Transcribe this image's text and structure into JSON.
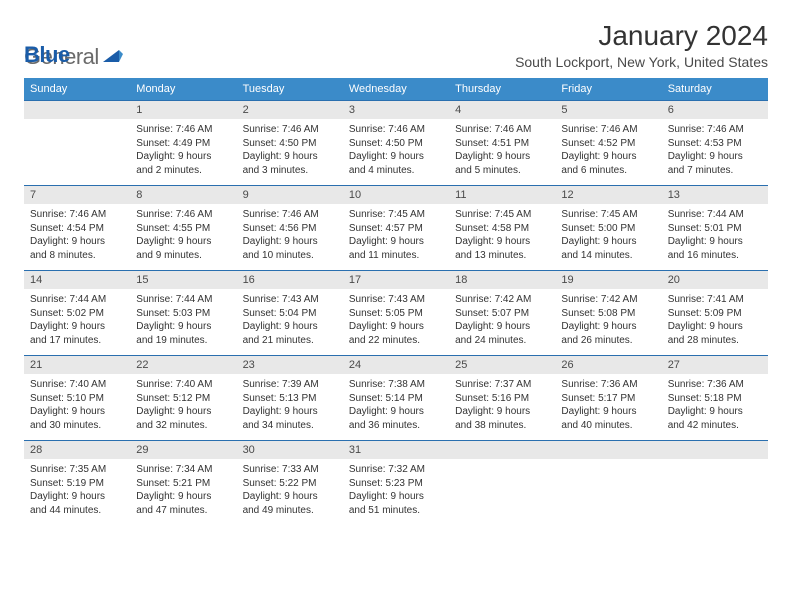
{
  "logo": {
    "gray": "General",
    "blue": "Blue"
  },
  "month_title": "January 2024",
  "location": "South Lockport, New York, United States",
  "colors": {
    "header_bg": "#3b8bc9",
    "header_text": "#ffffff",
    "daynum_bg": "#e8e8e8",
    "row_border": "#2a6faf",
    "logo_gray": "#6a6a6a",
    "logo_blue": "#1a5ca8"
  },
  "day_headers": [
    "Sunday",
    "Monday",
    "Tuesday",
    "Wednesday",
    "Thursday",
    "Friday",
    "Saturday"
  ],
  "weeks": [
    [
      null,
      {
        "n": "1",
        "sr": "7:46 AM",
        "ss": "4:49 PM",
        "dl": "9 hours and 2 minutes."
      },
      {
        "n": "2",
        "sr": "7:46 AM",
        "ss": "4:50 PM",
        "dl": "9 hours and 3 minutes."
      },
      {
        "n": "3",
        "sr": "7:46 AM",
        "ss": "4:50 PM",
        "dl": "9 hours and 4 minutes."
      },
      {
        "n": "4",
        "sr": "7:46 AM",
        "ss": "4:51 PM",
        "dl": "9 hours and 5 minutes."
      },
      {
        "n": "5",
        "sr": "7:46 AM",
        "ss": "4:52 PM",
        "dl": "9 hours and 6 minutes."
      },
      {
        "n": "6",
        "sr": "7:46 AM",
        "ss": "4:53 PM",
        "dl": "9 hours and 7 minutes."
      }
    ],
    [
      {
        "n": "7",
        "sr": "7:46 AM",
        "ss": "4:54 PM",
        "dl": "9 hours and 8 minutes."
      },
      {
        "n": "8",
        "sr": "7:46 AM",
        "ss": "4:55 PM",
        "dl": "9 hours and 9 minutes."
      },
      {
        "n": "9",
        "sr": "7:46 AM",
        "ss": "4:56 PM",
        "dl": "9 hours and 10 minutes."
      },
      {
        "n": "10",
        "sr": "7:45 AM",
        "ss": "4:57 PM",
        "dl": "9 hours and 11 minutes."
      },
      {
        "n": "11",
        "sr": "7:45 AM",
        "ss": "4:58 PM",
        "dl": "9 hours and 13 minutes."
      },
      {
        "n": "12",
        "sr": "7:45 AM",
        "ss": "5:00 PM",
        "dl": "9 hours and 14 minutes."
      },
      {
        "n": "13",
        "sr": "7:44 AM",
        "ss": "5:01 PM",
        "dl": "9 hours and 16 minutes."
      }
    ],
    [
      {
        "n": "14",
        "sr": "7:44 AM",
        "ss": "5:02 PM",
        "dl": "9 hours and 17 minutes."
      },
      {
        "n": "15",
        "sr": "7:44 AM",
        "ss": "5:03 PM",
        "dl": "9 hours and 19 minutes."
      },
      {
        "n": "16",
        "sr": "7:43 AM",
        "ss": "5:04 PM",
        "dl": "9 hours and 21 minutes."
      },
      {
        "n": "17",
        "sr": "7:43 AM",
        "ss": "5:05 PM",
        "dl": "9 hours and 22 minutes."
      },
      {
        "n": "18",
        "sr": "7:42 AM",
        "ss": "5:07 PM",
        "dl": "9 hours and 24 minutes."
      },
      {
        "n": "19",
        "sr": "7:42 AM",
        "ss": "5:08 PM",
        "dl": "9 hours and 26 minutes."
      },
      {
        "n": "20",
        "sr": "7:41 AM",
        "ss": "5:09 PM",
        "dl": "9 hours and 28 minutes."
      }
    ],
    [
      {
        "n": "21",
        "sr": "7:40 AM",
        "ss": "5:10 PM",
        "dl": "9 hours and 30 minutes."
      },
      {
        "n": "22",
        "sr": "7:40 AM",
        "ss": "5:12 PM",
        "dl": "9 hours and 32 minutes."
      },
      {
        "n": "23",
        "sr": "7:39 AM",
        "ss": "5:13 PM",
        "dl": "9 hours and 34 minutes."
      },
      {
        "n": "24",
        "sr": "7:38 AM",
        "ss": "5:14 PM",
        "dl": "9 hours and 36 minutes."
      },
      {
        "n": "25",
        "sr": "7:37 AM",
        "ss": "5:16 PM",
        "dl": "9 hours and 38 minutes."
      },
      {
        "n": "26",
        "sr": "7:36 AM",
        "ss": "5:17 PM",
        "dl": "9 hours and 40 minutes."
      },
      {
        "n": "27",
        "sr": "7:36 AM",
        "ss": "5:18 PM",
        "dl": "9 hours and 42 minutes."
      }
    ],
    [
      {
        "n": "28",
        "sr": "7:35 AM",
        "ss": "5:19 PM",
        "dl": "9 hours and 44 minutes."
      },
      {
        "n": "29",
        "sr": "7:34 AM",
        "ss": "5:21 PM",
        "dl": "9 hours and 47 minutes."
      },
      {
        "n": "30",
        "sr": "7:33 AM",
        "ss": "5:22 PM",
        "dl": "9 hours and 49 minutes."
      },
      {
        "n": "31",
        "sr": "7:32 AM",
        "ss": "5:23 PM",
        "dl": "9 hours and 51 minutes."
      },
      null,
      null,
      null
    ]
  ],
  "labels": {
    "sunrise": "Sunrise:",
    "sunset": "Sunset:",
    "daylight": "Daylight:"
  }
}
